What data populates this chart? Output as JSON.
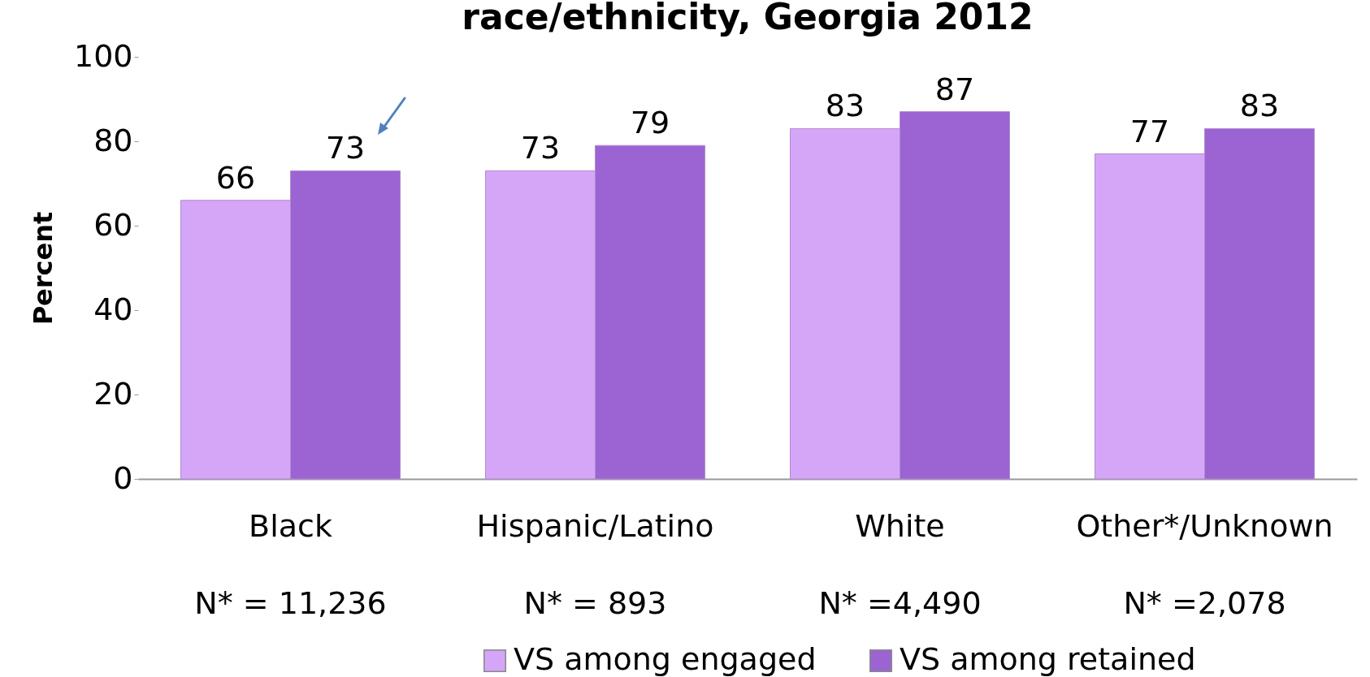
{
  "chart_data": {
    "type": "bar",
    "title": "race/ethnicity, Georgia 2012",
    "ylabel": "Percent",
    "categories": [
      "Black",
      "Hispanic/Latino",
      "White",
      "Other*/Unknown"
    ],
    "series": [
      {
        "name": "VS among engaged",
        "color": "#d5a6f7",
        "values": [
          66,
          73,
          83,
          77
        ]
      },
      {
        "name": "VS among retained",
        "color": "#9c64d2",
        "values": [
          73,
          79,
          87,
          83
        ]
      }
    ],
    "ylim": [
      0,
      100
    ],
    "yticks": [
      0,
      20,
      40,
      60,
      80,
      100
    ],
    "grid": false,
    "data_labels": true,
    "legend": "bottom",
    "annotations": [
      "N* = 11,236",
      "N* = 893",
      "N* =4,490",
      "N* =2,078"
    ]
  }
}
